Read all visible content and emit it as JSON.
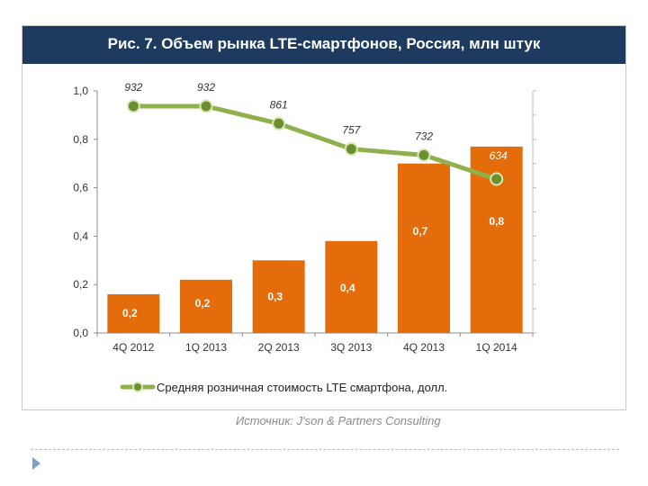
{
  "title": "Рис. 7. Объем рынка LTE-смартфонов, Россия, млн штук",
  "source": "Источник: J'son & Partners Consulting",
  "colors": {
    "bar": "#e46c0a",
    "line": "#8fb04a",
    "marker": "#6a8f2e",
    "header": "#1e3a5f"
  },
  "chart_data": {
    "type": "bar",
    "categories": [
      "4Q 2012",
      "1Q 2013",
      "2Q 2013",
      "3Q 2013",
      "4Q 2013",
      "1Q 2014"
    ],
    "series": [
      {
        "values": [
          0.16,
          0.22,
          0.3,
          0.38,
          0.7,
          0.77
        ],
        "labels": [
          "0,2",
          "0,2",
          "0,3",
          "0,4",
          "0,7",
          "0,8"
        ]
      },
      {
        "name": "Средняя розничная стоимость LTE смартфона, долл.",
        "type": "line",
        "values": [
          932,
          932,
          861,
          757,
          732,
          634
        ],
        "labels": [
          "932",
          "932",
          "861",
          "757",
          "732",
          "634"
        ]
      }
    ],
    "yticks": [
      "0,0",
      "0,2",
      "0,4",
      "0,6",
      "0,8",
      "1,0"
    ],
    "ylim": [
      0,
      1.0
    ],
    "legend": "bottom"
  }
}
